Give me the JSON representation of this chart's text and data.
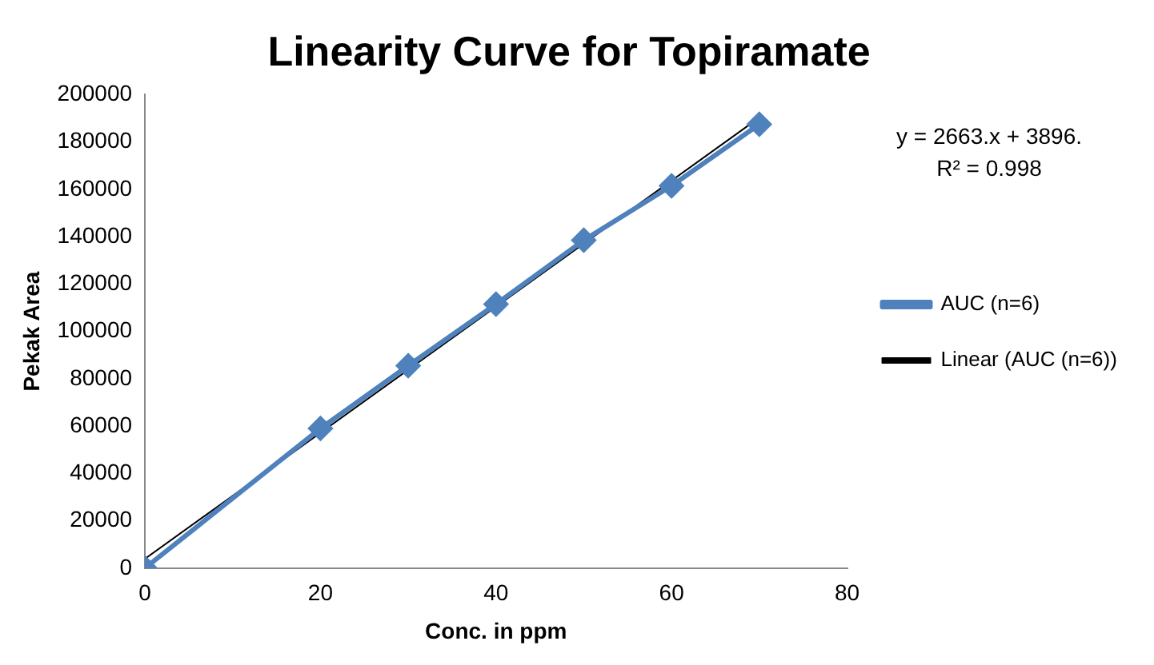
{
  "chart_data": {
    "type": "scatter",
    "title": "Linearity Curve for Topiramate",
    "xlabel": "Conc. in ppm",
    "ylabel": "Pekak Area",
    "x": [
      0,
      20,
      30,
      40,
      50,
      60,
      70
    ],
    "series": [
      {
        "name": "AUC (n=6)",
        "type": "line",
        "color": "#4f81bd",
        "values": [
          0,
          59000,
          85500,
          111500,
          138500,
          161500,
          187500
        ]
      },
      {
        "name": "Linear (AUC (n=6))",
        "type": "line",
        "color": "#000000",
        "marker": "none",
        "x": [
          0,
          70
        ],
        "values": [
          3900,
          190300
        ]
      }
    ],
    "xlim": [
      0,
      80
    ],
    "xticks": [
      0,
      20,
      40,
      60,
      80
    ],
    "ylim": [
      0,
      200000
    ],
    "yticks": [
      0,
      20000,
      40000,
      60000,
      80000,
      100000,
      120000,
      140000,
      160000,
      180000,
      200000
    ],
    "grid": false,
    "legend": "right",
    "marker": "diamond",
    "annotations": [
      "y = 2663.x + 3896.",
      "R² = 0.998"
    ]
  }
}
